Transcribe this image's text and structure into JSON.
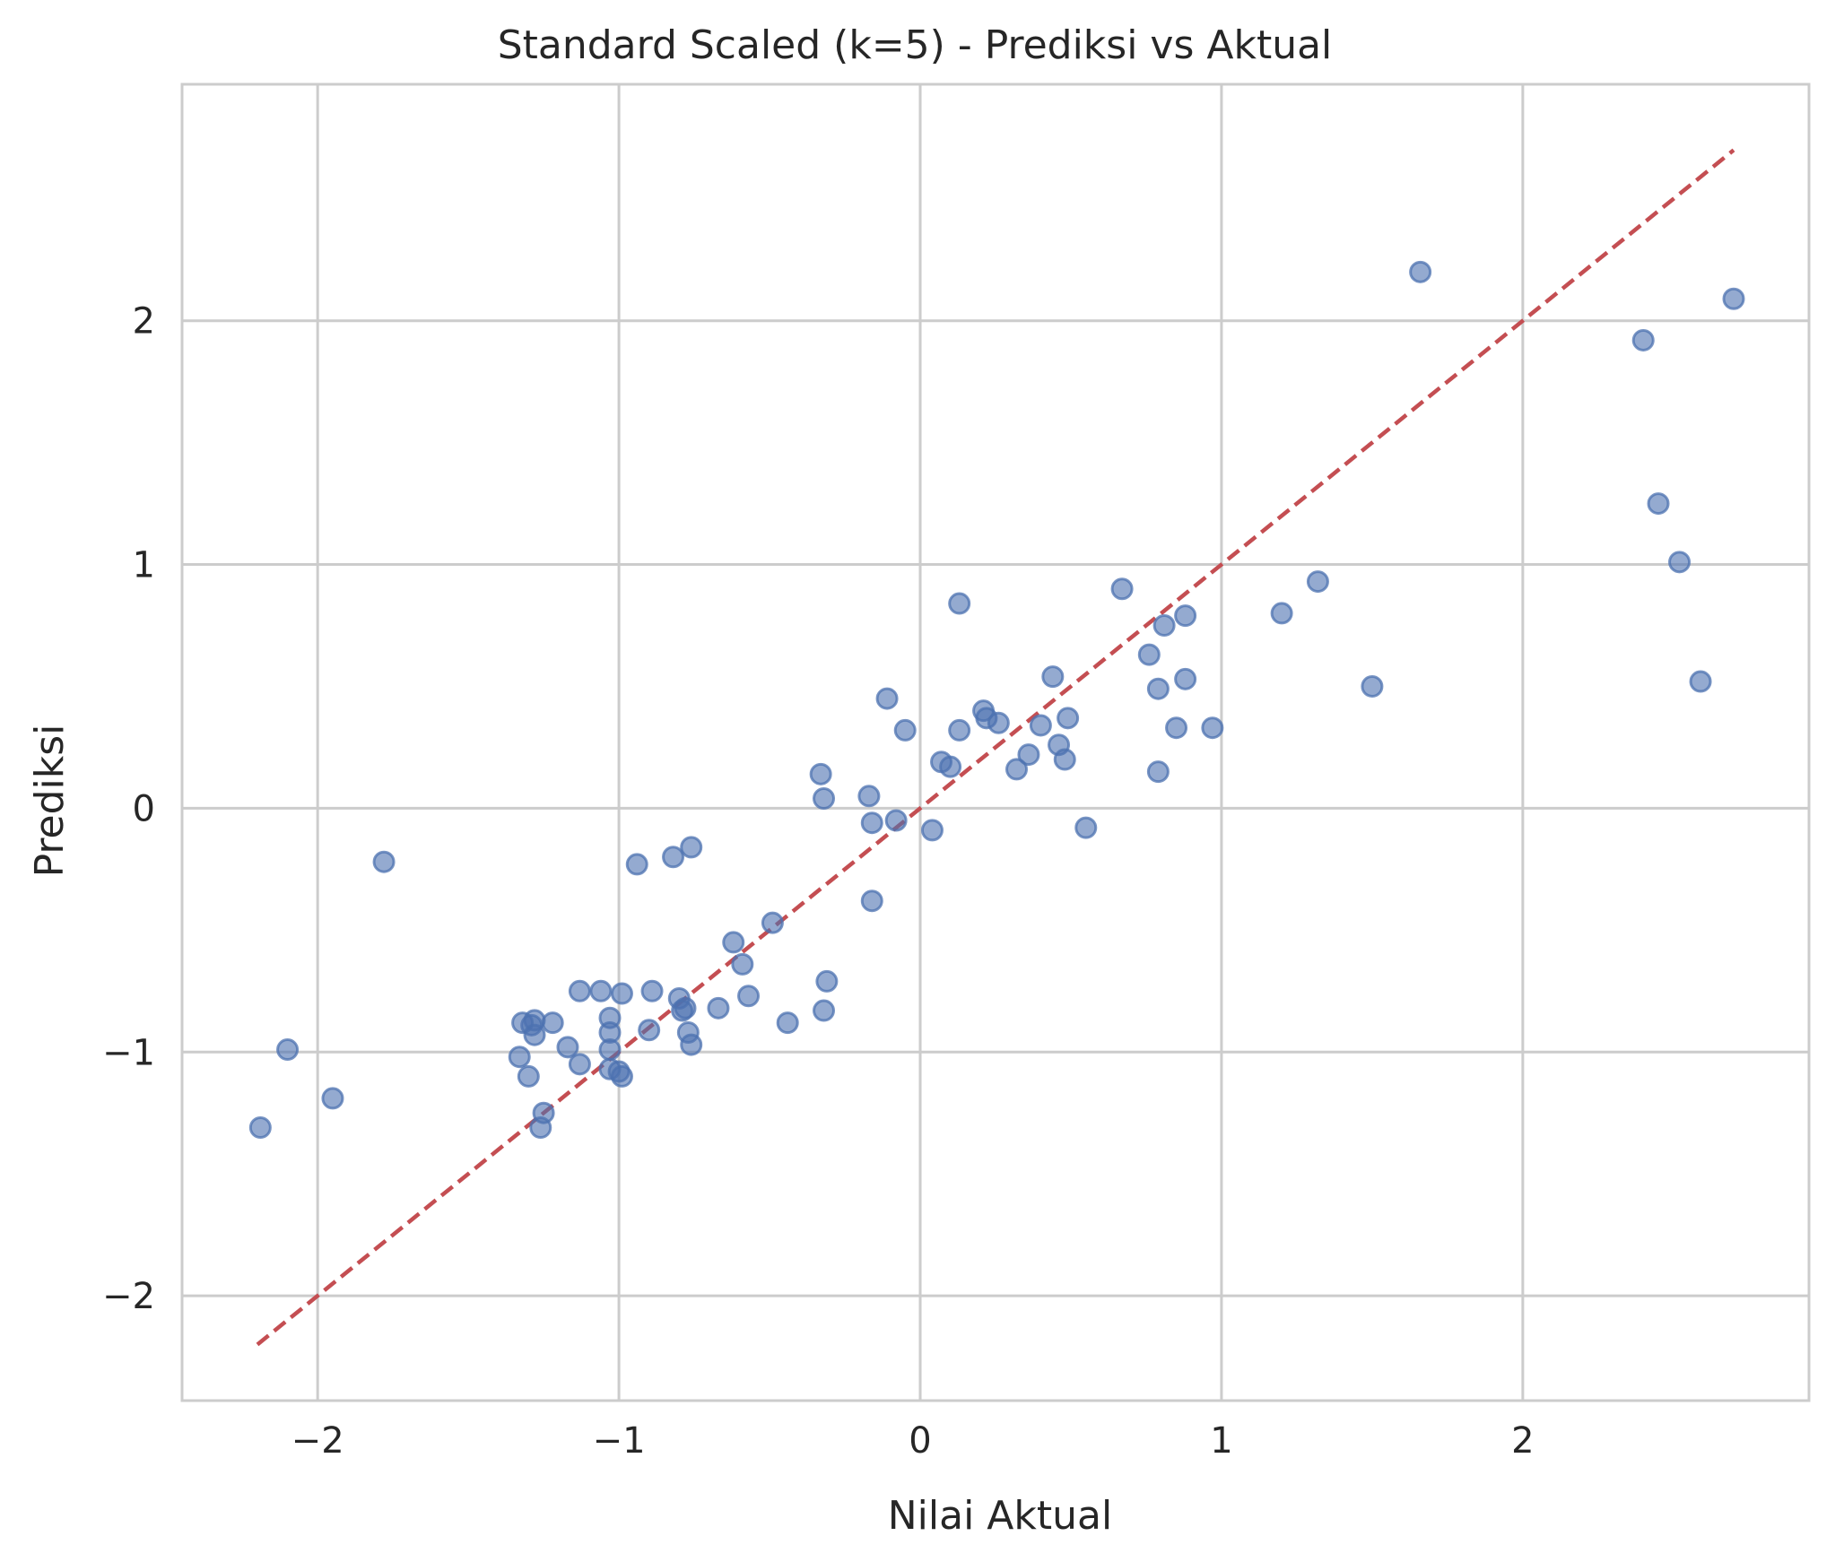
{
  "chart_data": {
    "type": "scatter",
    "title": "Standard Scaled (k=5) - Prediksi vs Aktual",
    "xlabel": "Nilai Aktual",
    "ylabel": "Prediksi",
    "xlim": [
      -2.45,
      2.95
    ],
    "ylim": [
      -2.43,
      2.97
    ],
    "xticks": [
      -2,
      -1,
      0,
      1,
      2
    ],
    "yticks": [
      -2,
      -1,
      0,
      1,
      2
    ],
    "xtick_labels": [
      "−2",
      "−1",
      "0",
      "1",
      "2"
    ],
    "ytick_labels": [
      "−2",
      "−1",
      "0",
      "1",
      "2"
    ],
    "grid": true,
    "colors": {
      "points": "#4c72b0",
      "reference_line": "#c44e52",
      "grid": "#cccccc",
      "spine": "#cccccc",
      "text": "#262626"
    },
    "reference_line": {
      "style": "dashed",
      "from": [
        -2.2,
        -2.2
      ],
      "to": [
        2.7,
        2.7
      ]
    },
    "series": [
      {
        "points": [
          [
            1.66,
            2.2
          ],
          [
            2.7,
            2.09
          ],
          [
            2.4,
            1.92
          ],
          [
            2.45,
            1.25
          ],
          [
            2.52,
            1.01
          ],
          [
            2.59,
            0.52
          ],
          [
            1.32,
            0.93
          ],
          [
            1.2,
            0.8
          ],
          [
            1.5,
            0.5
          ],
          [
            0.67,
            0.9
          ],
          [
            0.88,
            0.79
          ],
          [
            0.81,
            0.75
          ],
          [
            0.76,
            0.63
          ],
          [
            0.88,
            0.53
          ],
          [
            0.79,
            0.49
          ],
          [
            0.85,
            0.33
          ],
          [
            0.97,
            0.33
          ],
          [
            0.79,
            0.15
          ],
          [
            0.55,
            -0.08
          ],
          [
            0.44,
            0.54
          ],
          [
            0.49,
            0.37
          ],
          [
            0.4,
            0.34
          ],
          [
            0.36,
            0.22
          ],
          [
            0.46,
            0.26
          ],
          [
            0.48,
            0.2
          ],
          [
            0.32,
            0.16
          ],
          [
            0.13,
            0.84
          ],
          [
            0.21,
            0.4
          ],
          [
            0.22,
            0.37
          ],
          [
            0.26,
            0.35
          ],
          [
            0.13,
            0.32
          ],
          [
            0.07,
            0.19
          ],
          [
            0.1,
            0.17
          ],
          [
            0.04,
            -0.09
          ],
          [
            -0.11,
            0.45
          ],
          [
            -0.05,
            0.32
          ],
          [
            -0.17,
            0.05
          ],
          [
            -0.16,
            -0.06
          ],
          [
            -0.08,
            -0.05
          ],
          [
            -0.16,
            -0.38
          ],
          [
            -0.33,
            0.14
          ],
          [
            -0.32,
            0.04
          ],
          [
            -0.31,
            -0.71
          ],
          [
            -0.32,
            -0.83
          ],
          [
            -0.44,
            -0.88
          ],
          [
            -0.49,
            -0.47
          ],
          [
            -0.62,
            -0.55
          ],
          [
            -0.59,
            -0.64
          ],
          [
            -0.57,
            -0.77
          ],
          [
            -0.67,
            -0.82
          ],
          [
            -0.76,
            -0.16
          ],
          [
            -0.82,
            -0.2
          ],
          [
            -0.94,
            -0.23
          ],
          [
            -0.8,
            -0.78
          ],
          [
            -0.78,
            -0.82
          ],
          [
            -0.79,
            -0.83
          ],
          [
            -0.77,
            -0.92
          ],
          [
            -0.76,
            -0.97
          ],
          [
            -0.89,
            -0.75
          ],
          [
            -0.9,
            -0.91
          ],
          [
            -0.99,
            -0.76
          ],
          [
            -1.06,
            -0.75
          ],
          [
            -1.03,
            -0.86
          ],
          [
            -1.03,
            -0.92
          ],
          [
            -1.03,
            -0.99
          ],
          [
            -1.03,
            -1.07
          ],
          [
            -1.0,
            -1.08
          ],
          [
            -0.99,
            -1.1
          ],
          [
            -1.13,
            -0.75
          ],
          [
            -1.13,
            -1.05
          ],
          [
            -1.17,
            -0.98
          ],
          [
            -1.22,
            -0.88
          ],
          [
            -1.28,
            -0.87
          ],
          [
            -1.29,
            -0.89
          ],
          [
            -1.32,
            -0.88
          ],
          [
            -1.28,
            -0.93
          ],
          [
            -1.33,
            -1.02
          ],
          [
            -1.3,
            -1.1
          ],
          [
            -1.25,
            -1.25
          ],
          [
            -1.26,
            -1.31
          ],
          [
            -1.78,
            -0.22
          ],
          [
            -2.1,
            -0.99
          ],
          [
            -1.95,
            -1.19
          ],
          [
            -2.19,
            -1.31
          ]
        ]
      }
    ]
  }
}
